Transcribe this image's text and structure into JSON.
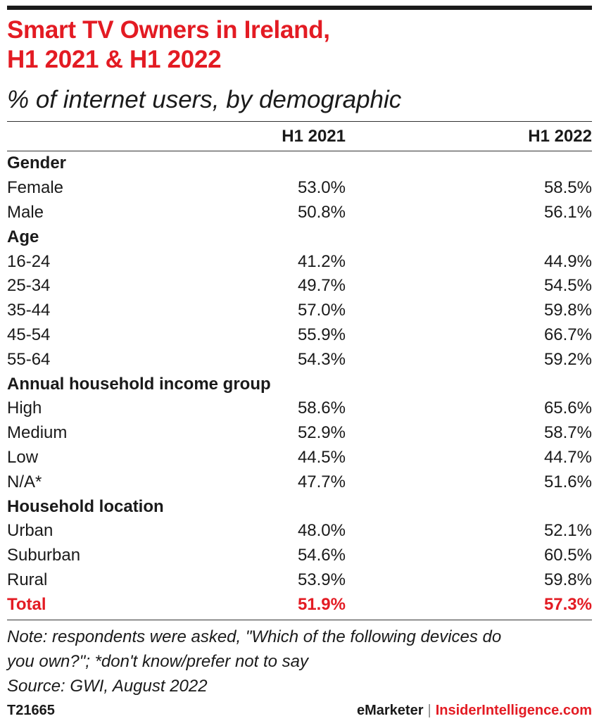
{
  "title_line1": "Smart TV Owners in Ireland,",
  "title_line2": "H1 2021 & H1 2022",
  "subtitle": "% of internet users, by demographic",
  "columns": [
    "",
    "H1 2021",
    "H1 2022"
  ],
  "chart_data": {
    "type": "table",
    "title": "Smart TV Owners in Ireland, H1 2021 & H1 2022",
    "subtitle": "% of internet users, by demographic",
    "columns": [
      "H1 2021",
      "H1 2022"
    ],
    "rows": [
      {
        "label": "Gender",
        "section": true
      },
      {
        "label": "Female",
        "values": [
          "53.0%",
          "58.5%"
        ]
      },
      {
        "label": "Male",
        "values": [
          "50.8%",
          "56.1%"
        ]
      },
      {
        "label": "Age",
        "section": true
      },
      {
        "label": "16-24",
        "values": [
          "41.2%",
          "44.9%"
        ]
      },
      {
        "label": "25-34",
        "values": [
          "49.7%",
          "54.5%"
        ]
      },
      {
        "label": "35-44",
        "values": [
          "57.0%",
          "59.8%"
        ]
      },
      {
        "label": "45-54",
        "values": [
          "55.9%",
          "66.7%"
        ]
      },
      {
        "label": "55-64",
        "values": [
          "54.3%",
          "59.2%"
        ]
      },
      {
        "label": "Annual household income group",
        "section": true
      },
      {
        "label": "High",
        "values": [
          "58.6%",
          "65.6%"
        ]
      },
      {
        "label": "Medium",
        "values": [
          "52.9%",
          "58.7%"
        ]
      },
      {
        "label": "Low",
        "values": [
          "44.5%",
          "44.7%"
        ]
      },
      {
        "label": "N/A*",
        "values": [
          "47.7%",
          "51.6%"
        ]
      },
      {
        "label": "Household location",
        "section": true
      },
      {
        "label": "Urban",
        "values": [
          "48.0%",
          "52.1%"
        ]
      },
      {
        "label": "Suburban",
        "values": [
          "54.6%",
          "60.5%"
        ]
      },
      {
        "label": "Rural",
        "values": [
          "53.9%",
          "59.8%"
        ]
      },
      {
        "label": "Total",
        "values": [
          "51.9%",
          "57.3%"
        ],
        "total": true
      }
    ]
  },
  "note_line1": "Note: respondents were asked, \"Which of the following devices do",
  "note_line2": "you own?\"; *don't know/prefer not to say",
  "source": "Source: GWI, August 2022",
  "chart_id": "T21665",
  "brand_emarketer": "eMarketer",
  "brand_separator": "|",
  "brand_insider": "InsiderIntelligence.com",
  "colors": {
    "accent": "#e31b23",
    "text": "#1a1a1a"
  }
}
